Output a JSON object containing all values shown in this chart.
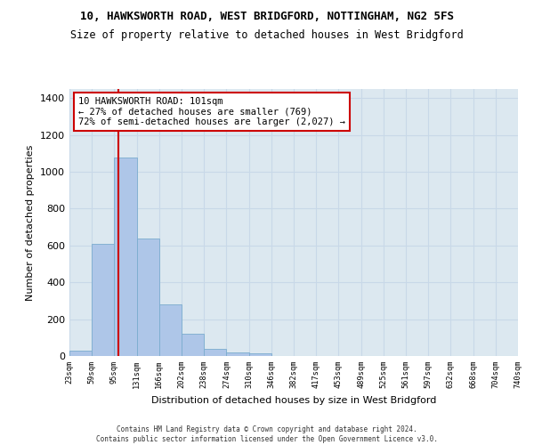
{
  "title_line1": "10, HAWKSWORTH ROAD, WEST BRIDGFORD, NOTTINGHAM, NG2 5FS",
  "title_line2": "Size of property relative to detached houses in West Bridgford",
  "xlabel": "Distribution of detached houses by size in West Bridgford",
  "ylabel": "Number of detached properties",
  "bar_values": [
    30,
    610,
    1080,
    640,
    280,
    120,
    40,
    20,
    15,
    0,
    0,
    0,
    0,
    0,
    0,
    0,
    0,
    0,
    0,
    0
  ],
  "bin_labels": [
    "23sqm",
    "59sqm",
    "95sqm",
    "131sqm",
    "166sqm",
    "202sqm",
    "238sqm",
    "274sqm",
    "310sqm",
    "346sqm",
    "382sqm",
    "417sqm",
    "453sqm",
    "489sqm",
    "525sqm",
    "561sqm",
    "597sqm",
    "632sqm",
    "668sqm",
    "704sqm",
    "740sqm"
  ],
  "bar_color": "#aec6e8",
  "bar_edge_color": "#7aacce",
  "property_bin_index": 2,
  "property_within_bin": 0.17,
  "vline_color": "#cc0000",
  "annotation_text": "10 HAWKSWORTH ROAD: 101sqm\n← 27% of detached houses are smaller (769)\n72% of semi-detached houses are larger (2,027) →",
  "annotation_box_color": "#ffffff",
  "annotation_box_edge": "#cc0000",
  "ylim": [
    0,
    1450
  ],
  "yticks": [
    0,
    200,
    400,
    600,
    800,
    1000,
    1200,
    1400
  ],
  "grid_color": "#c8d8e8",
  "bg_color": "#dce8f0",
  "footer1": "Contains HM Land Registry data © Crown copyright and database right 2024.",
  "footer2": "Contains public sector information licensed under the Open Government Licence v3.0."
}
